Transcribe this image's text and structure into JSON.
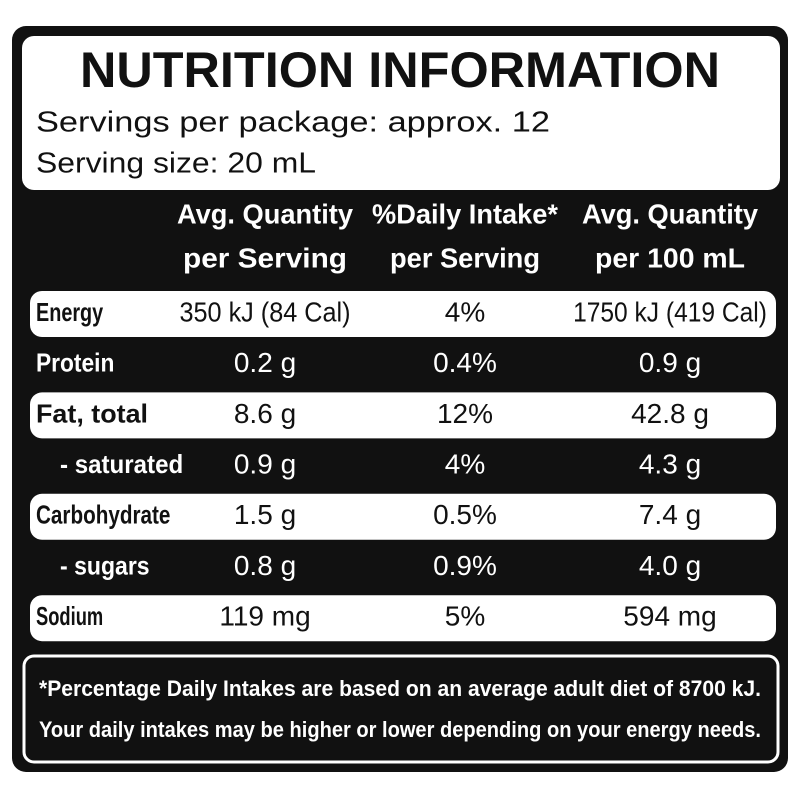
{
  "header": {
    "title": "NUTRITION INFORMATION",
    "servings": "Servings per package: approx. 12",
    "serving_size": "Serving size: 20 mL"
  },
  "table": {
    "columns": [
      [
        "Avg. Quantity",
        "per Serving"
      ],
      [
        "%Daily Intake*",
        "per Serving"
      ],
      [
        "Avg. Quantity",
        "per 100 mL"
      ]
    ],
    "rows": [
      [
        "Energy",
        "350 kJ (84 Cal)",
        "4%",
        "1750 kJ (419 Cal)"
      ],
      [
        "Protein",
        "0.2 g",
        "0.4%",
        "0.9 g"
      ],
      [
        "Fat, total",
        "8.6 g",
        "12%",
        "42.8 g"
      ],
      [
        "- saturated",
        "0.9 g",
        "4%",
        "4.3 g"
      ],
      [
        "Carbohydrate",
        "1.5 g",
        "0.5%",
        "7.4 g"
      ],
      [
        "- sugars",
        "0.8 g",
        "0.9%",
        "4.0 g"
      ],
      [
        "Sodium",
        "119 mg",
        "5%",
        "594 mg"
      ]
    ]
  },
  "footnote": [
    "*Percentage Daily Intakes are based on an average adult diet of 8700 kJ.",
    "Your daily intakes may be higher or lower depending on your energy needs."
  ]
}
